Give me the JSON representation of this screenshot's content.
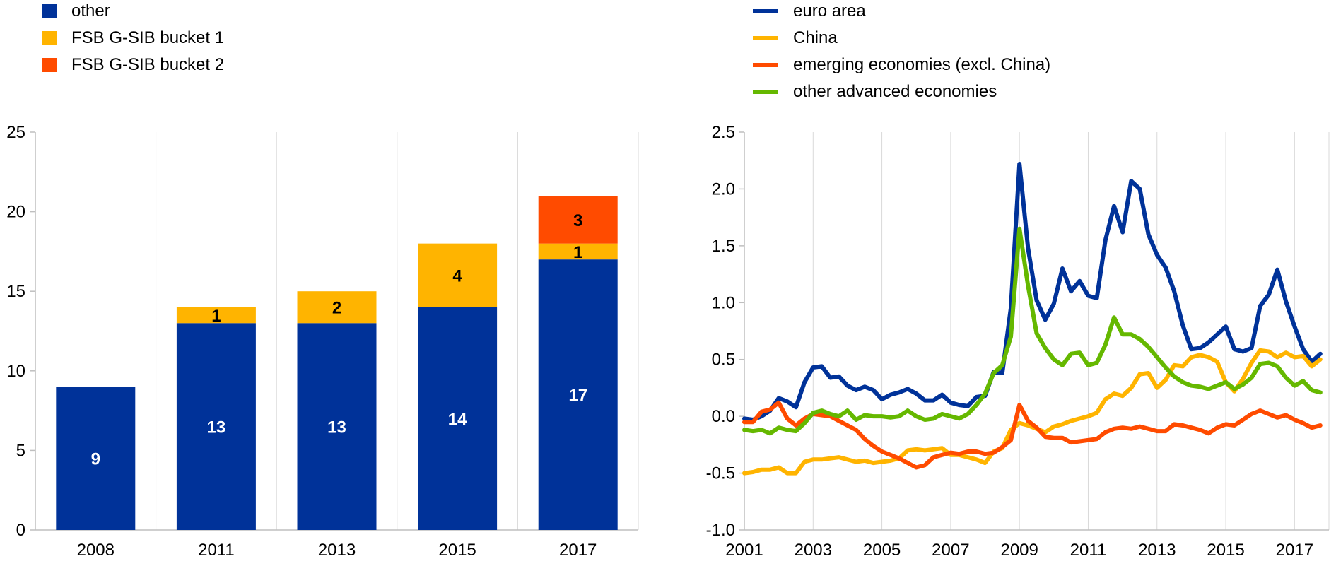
{
  "colors": {
    "blue": "#003299",
    "yellow": "#FFB400",
    "orange": "#FF4B00",
    "green": "#65B800",
    "grid": "#D9D9D9",
    "axis": "#BFBFBF"
  },
  "chart_data": [
    {
      "type": "bar",
      "stacked": true,
      "categories": [
        "2008",
        "2011",
        "2013",
        "2015",
        "2017"
      ],
      "series": [
        {
          "name": "other",
          "color": "#003299",
          "values": [
            9,
            13,
            13,
            14,
            17
          ]
        },
        {
          "name": "FSB G-SIB bucket 1",
          "color": "#FFB400",
          "values": [
            0,
            1,
            2,
            4,
            1
          ]
        },
        {
          "name": "FSB G-SIB bucket 2",
          "color": "#FF4B00",
          "values": [
            0,
            0,
            0,
            0,
            3
          ]
        }
      ],
      "ylim": [
        0,
        25
      ],
      "yticks": [
        "0",
        "5",
        "10",
        "15",
        "20",
        "25"
      ],
      "grid": "vertical",
      "legend": "top-left"
    },
    {
      "type": "line",
      "x_start": 2001.0,
      "x_step": 0.25,
      "xlim": [
        2001,
        2018
      ],
      "xticks": [
        "2001",
        "2003",
        "2005",
        "2007",
        "2009",
        "2011",
        "2013",
        "2015",
        "2017"
      ],
      "ylim": [
        -1.0,
        2.5
      ],
      "yticks": [
        "-1.0",
        "-0.5",
        "0.0",
        "0.5",
        "1.0",
        "1.5",
        "2.0",
        "2.5"
      ],
      "grid": "vertical",
      "legend": "top-left",
      "series": [
        {
          "name": "euro area",
          "color": "#003299",
          "values": [
            -0.02,
            -0.03,
            0.0,
            0.05,
            0.16,
            0.13,
            0.08,
            0.3,
            0.43,
            0.44,
            0.34,
            0.35,
            0.27,
            0.23,
            0.26,
            0.23,
            0.15,
            0.19,
            0.21,
            0.24,
            0.2,
            0.14,
            0.14,
            0.19,
            0.12,
            0.1,
            0.09,
            0.17,
            0.18,
            0.39,
            0.38,
            0.95,
            2.22,
            1.48,
            1.02,
            0.85,
            0.99,
            1.3,
            1.1,
            1.19,
            1.06,
            1.04,
            1.55,
            1.85,
            1.62,
            2.07,
            2.0,
            1.6,
            1.42,
            1.31,
            1.1,
            0.8,
            0.59,
            0.6,
            0.65,
            0.72,
            0.79,
            0.59,
            0.57,
            0.6,
            0.97,
            1.07,
            1.29,
            1.01,
            0.79,
            0.59,
            0.48,
            0.55
          ]
        },
        {
          "name": "China",
          "color": "#FFB400",
          "values": [
            -0.5,
            -0.49,
            -0.47,
            -0.47,
            -0.45,
            -0.5,
            -0.5,
            -0.4,
            -0.38,
            -0.38,
            -0.37,
            -0.36,
            -0.38,
            -0.4,
            -0.39,
            -0.41,
            -0.4,
            -0.39,
            -0.37,
            -0.3,
            -0.29,
            -0.3,
            -0.29,
            -0.28,
            -0.34,
            -0.34,
            -0.36,
            -0.38,
            -0.41,
            -0.31,
            -0.28,
            -0.12,
            -0.06,
            -0.08,
            -0.11,
            -0.14,
            -0.09,
            -0.07,
            -0.04,
            -0.02,
            0.0,
            0.03,
            0.15,
            0.2,
            0.18,
            0.25,
            0.37,
            0.38,
            0.25,
            0.32,
            0.45,
            0.44,
            0.52,
            0.54,
            0.52,
            0.48,
            0.3,
            0.22,
            0.33,
            0.47,
            0.58,
            0.57,
            0.52,
            0.56,
            0.52,
            0.53,
            0.44,
            0.5
          ]
        },
        {
          "name": "emerging economies (excl. China)",
          "color": "#FF4B00",
          "values": [
            -0.05,
            -0.05,
            0.04,
            0.06,
            0.12,
            -0.02,
            -0.08,
            -0.02,
            0.02,
            0.01,
            0.0,
            -0.04,
            -0.08,
            -0.12,
            -0.2,
            -0.26,
            -0.31,
            -0.34,
            -0.37,
            -0.41,
            -0.45,
            -0.43,
            -0.36,
            -0.34,
            -0.32,
            -0.33,
            -0.31,
            -0.31,
            -0.33,
            -0.32,
            -0.27,
            -0.21,
            0.1,
            -0.04,
            -0.1,
            -0.18,
            -0.19,
            -0.19,
            -0.23,
            -0.22,
            -0.21,
            -0.2,
            -0.14,
            -0.11,
            -0.1,
            -0.11,
            -0.09,
            -0.11,
            -0.13,
            -0.13,
            -0.07,
            -0.08,
            -0.1,
            -0.12,
            -0.15,
            -0.1,
            -0.07,
            -0.08,
            -0.03,
            0.02,
            0.05,
            0.02,
            -0.01,
            0.01,
            -0.03,
            -0.06,
            -0.1,
            -0.08
          ]
        },
        {
          "name": "other advanced economies",
          "color": "#65B800",
          "values": [
            -0.12,
            -0.13,
            -0.12,
            -0.15,
            -0.1,
            -0.12,
            -0.13,
            -0.06,
            0.03,
            0.05,
            0.02,
            0.0,
            0.05,
            -0.03,
            0.01,
            0.0,
            0.0,
            -0.01,
            0.0,
            0.05,
            0.0,
            -0.03,
            -0.02,
            0.02,
            0.0,
            -0.02,
            0.02,
            0.1,
            0.2,
            0.38,
            0.45,
            0.7,
            1.65,
            1.15,
            0.73,
            0.6,
            0.5,
            0.45,
            0.55,
            0.56,
            0.45,
            0.47,
            0.63,
            0.87,
            0.72,
            0.72,
            0.68,
            0.61,
            0.52,
            0.43,
            0.35,
            0.3,
            0.27,
            0.26,
            0.24,
            0.27,
            0.3,
            0.24,
            0.28,
            0.34,
            0.46,
            0.47,
            0.44,
            0.34,
            0.27,
            0.31,
            0.23,
            0.21
          ]
        }
      ]
    }
  ]
}
